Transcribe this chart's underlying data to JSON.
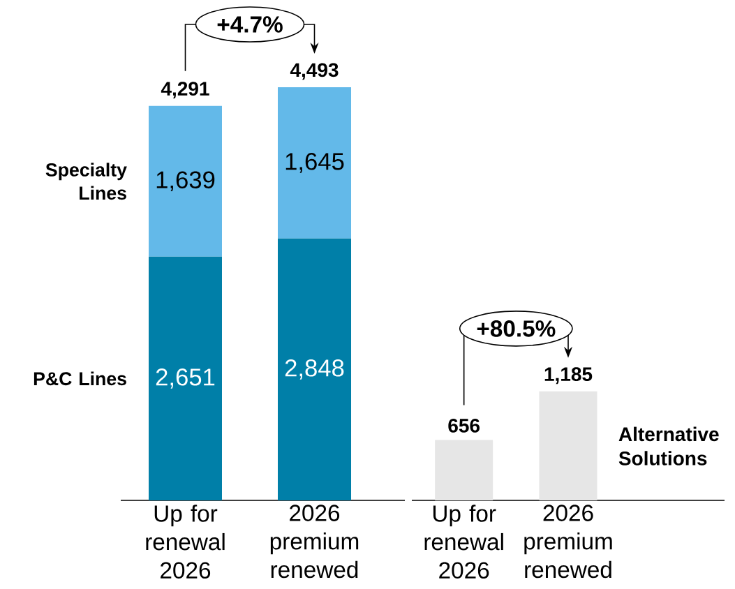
{
  "chart_data": [
    {
      "type": "bar",
      "stacked": true,
      "categories": [
        "Up for renewal 2026",
        "2026 premium renewed"
      ],
      "series": [
        {
          "name": "P&C Lines",
          "color": "#007fa8",
          "values": [
            2651,
            2848
          ],
          "value_labels": [
            "2,651",
            "2,848"
          ]
        },
        {
          "name": "Specialty Lines",
          "color": "#63b9e9",
          "values": [
            1639,
            1645
          ],
          "value_labels": [
            "1,639",
            "1,645"
          ]
        }
      ],
      "totals": [
        "4,291",
        "4,493"
      ],
      "annotations": [
        "+4.7%"
      ]
    },
    {
      "type": "bar",
      "categories": [
        "Up for renewal 2026",
        "2026 premium renewed"
      ],
      "series": [
        {
          "name": "Alternative Solutions",
          "color": "#e6e6e6",
          "values": [
            656,
            1185
          ],
          "value_labels": [
            "656",
            "1,185"
          ]
        }
      ],
      "annotations": [
        "+80.5%"
      ]
    }
  ]
}
